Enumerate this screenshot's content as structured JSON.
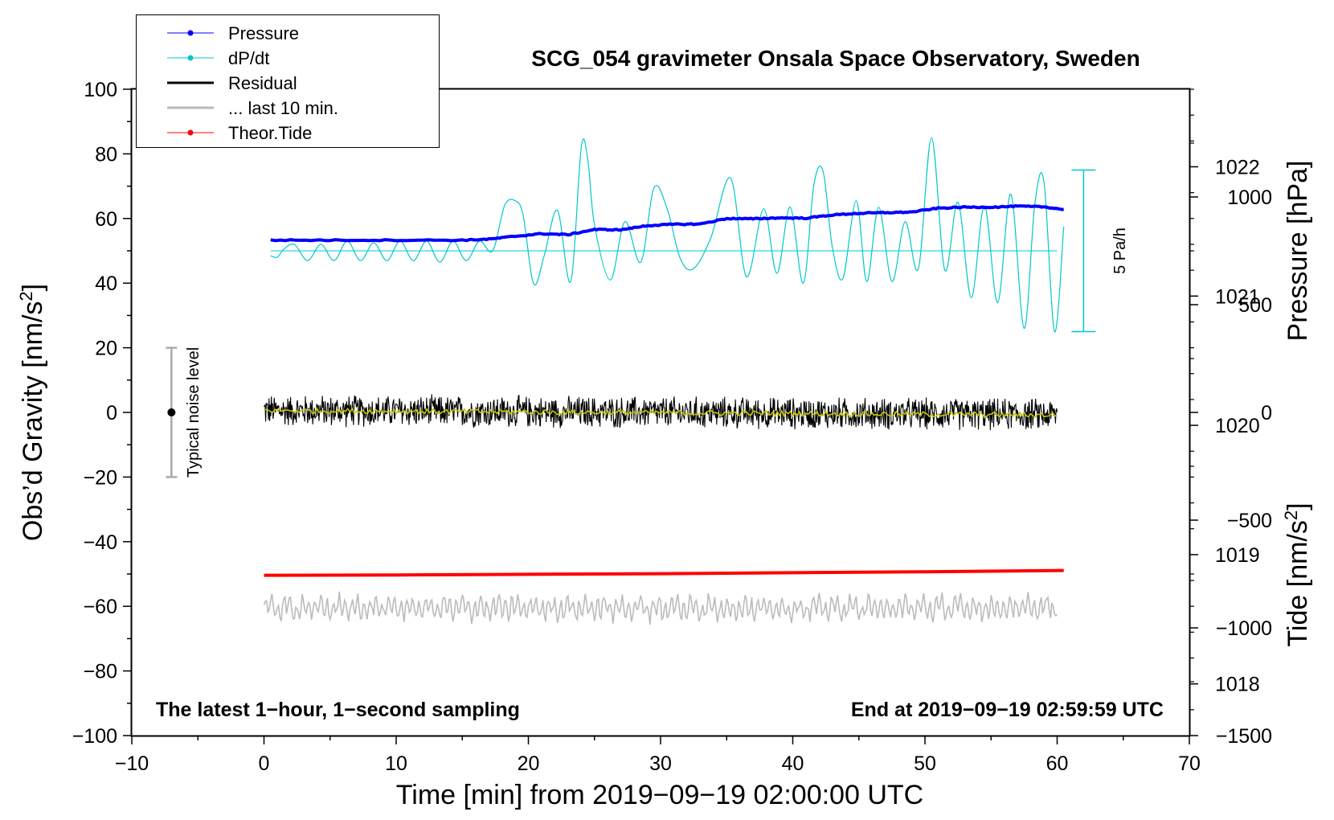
{
  "chart_data": {
    "type": "line",
    "title": "SCG_054 gravimeter Onsala Space Observatory, Sweden",
    "xlabel": "Time [min] from 2019−09−19 02:00:00 UTC",
    "ylabel_left": "Obs’d Gravity [nm/s",
    "ylabel_left_sup": "2",
    "ylabel_left_end": "]",
    "ylabel_right_pressure": "Pressure [hPa]",
    "ylabel_right_tide": "Tide [nm/s",
    "ylabel_right_tide_sup": "2",
    "ylabel_right_tide_end": "]",
    "xlim": [
      -10,
      70
    ],
    "ylim_left": [
      -100,
      100
    ],
    "ylim_pressure": [
      1017.6,
      1022.6
    ],
    "ylim_tide": [
      -1500,
      1500
    ],
    "x_ticks": [
      -10,
      0,
      10,
      20,
      30,
      40,
      50,
      60,
      70
    ],
    "x_tick_labels": [
      "−10",
      "0",
      "10",
      "20",
      "30",
      "40",
      "50",
      "60",
      "70"
    ],
    "y_left_ticks": [
      -100,
      -80,
      -60,
      -40,
      -20,
      0,
      20,
      40,
      60,
      80,
      100
    ],
    "y_left_tick_labels": [
      "−100",
      "−80",
      "−60",
      "−40",
      "−20",
      "0",
      "20",
      "40",
      "60",
      "80",
      "100"
    ],
    "y_pressure_ticks": [
      1018,
      1019,
      1020,
      1021,
      1022
    ],
    "y_pressure_tick_labels": [
      "1018",
      "1019",
      "1020",
      "1021",
      "1022"
    ],
    "y_tide_ticks": [
      -1500,
      -1000,
      -500,
      0,
      500,
      1000
    ],
    "y_tide_tick_labels": [
      "−1500",
      "−1000",
      "−500",
      "0",
      "500",
      "1000"
    ],
    "note_left": "The latest 1−hour, 1−second sampling",
    "note_right": "End at 2019−09−19 02:59:59 UTC",
    "noise_label": "Typical noise level",
    "noise_bar": {
      "x": -7,
      "center": 0,
      "low": -20,
      "high": 20
    },
    "scale_label": "5 Pa/h",
    "scale_bar": {
      "x": 62,
      "low": 25,
      "high": 75,
      "baseline": 50
    },
    "legend": [
      {
        "label": "Pressure",
        "color": "#0000ff",
        "marker": true,
        "width": 1
      },
      {
        "label": "dP/dt",
        "color": "#00c8c8",
        "marker": true,
        "width": 1
      },
      {
        "label": "Residual",
        "color": "#000000",
        "marker": false,
        "width": 3
      },
      {
        "label": "... last 10 min.",
        "color": "#bbbbbb",
        "marker": false,
        "width": 3
      },
      {
        "label": "Theor.Tide",
        "color": "#ff0000",
        "marker": true,
        "width": 1
      }
    ],
    "series": [
      {
        "name": "Pressure",
        "color": "#0000ff",
        "axis": "left",
        "x": [
          0.5,
          5,
          10,
          15,
          17,
          19,
          21,
          23,
          25,
          27,
          29,
          31,
          33,
          35,
          37,
          39,
          41,
          43,
          45,
          47,
          49,
          51,
          53,
          55,
          57,
          59,
          60.5
        ],
        "y": [
          53.3,
          53.3,
          53.3,
          53.3,
          53.6,
          54.5,
          55.3,
          55.0,
          56.6,
          56.5,
          57.8,
          58.2,
          58.3,
          60.0,
          59.9,
          60.2,
          60.1,
          61.1,
          61.6,
          61.8,
          62.0,
          63.2,
          63.5,
          63.5,
          63.8,
          63.6,
          62.8
        ]
      },
      {
        "name": "dP/dt",
        "color": "#00c8c8",
        "axis": "left",
        "baseline": 50,
        "x": [
          0.5,
          1.0,
          1.5,
          2.3,
          3.3,
          4.3,
          5.3,
          6.3,
          7.3,
          8.3,
          9.3,
          10.3,
          11.3,
          12.3,
          13.3,
          14.3,
          15.3,
          16.3,
          17.3,
          18.2,
          19.0,
          19.6,
          20.4,
          21.2,
          22.2,
          23.2,
          24.0,
          24.5,
          25.0,
          26.2,
          27.3,
          28.5,
          29.5,
          30.5,
          31.5,
          32.5,
          33.8,
          35.3,
          36.5,
          37.8,
          38.8,
          39.8,
          40.8,
          41.6,
          42.3,
          43.0,
          43.8,
          44.8,
          45.6,
          46.5,
          47.5,
          48.5,
          49.5,
          50.5,
          51.5,
          52.5,
          53.5,
          54.5,
          55.5,
          56.5,
          57.5,
          58.3,
          59.0,
          59.8,
          60.5
        ],
        "y": [
          48.5,
          48.0,
          50.5,
          52.0,
          47.0,
          52.0,
          47.0,
          53.0,
          47.0,
          52.5,
          47.0,
          53.0,
          47.0,
          53.0,
          46.5,
          53.0,
          47.0,
          53.0,
          50.0,
          64.0,
          65.5,
          61.0,
          39.8,
          48.5,
          62.5,
          40.5,
          82.0,
          78.0,
          58.0,
          41.0,
          59.0,
          46.5,
          69.5,
          63.0,
          47.5,
          44.5,
          54.0,
          72.5,
          42.0,
          63.0,
          43.0,
          63.5,
          40.0,
          70.5,
          74.5,
          51.0,
          41.5,
          65.5,
          40.5,
          63.5,
          40.5,
          59.0,
          44.5,
          85.0,
          44.0,
          65.0,
          35.5,
          64.0,
          34.0,
          67.5,
          26.0,
          64.0,
          71.5,
          25.0,
          57.5
        ]
      },
      {
        "name": "Residual",
        "color": "#000000",
        "axis": "left",
        "x_start": 0,
        "x_end": 60,
        "center": 0,
        "amplitude": 5.5
      },
      {
        "name": "Residual (smoothed)",
        "color": "#c8c800",
        "axis": "left",
        "x_start": 0,
        "x_end": 60,
        "center": 0.2,
        "amplitude": 0.8
      },
      {
        "name": "... last 10 min.",
        "color": "#bbbbbb",
        "axis": "left",
        "x_start": 0,
        "x_end": 60,
        "center": -60.5,
        "amplitude": 5.0
      },
      {
        "name": "Theor.Tide",
        "color": "#ff0000",
        "axis": "left",
        "x": [
          0,
          10,
          20,
          30,
          40,
          50,
          60.5
        ],
        "y": [
          -50.4,
          -50.3,
          -50.1,
          -49.9,
          -49.6,
          -49.3,
          -48.9
        ]
      }
    ]
  }
}
